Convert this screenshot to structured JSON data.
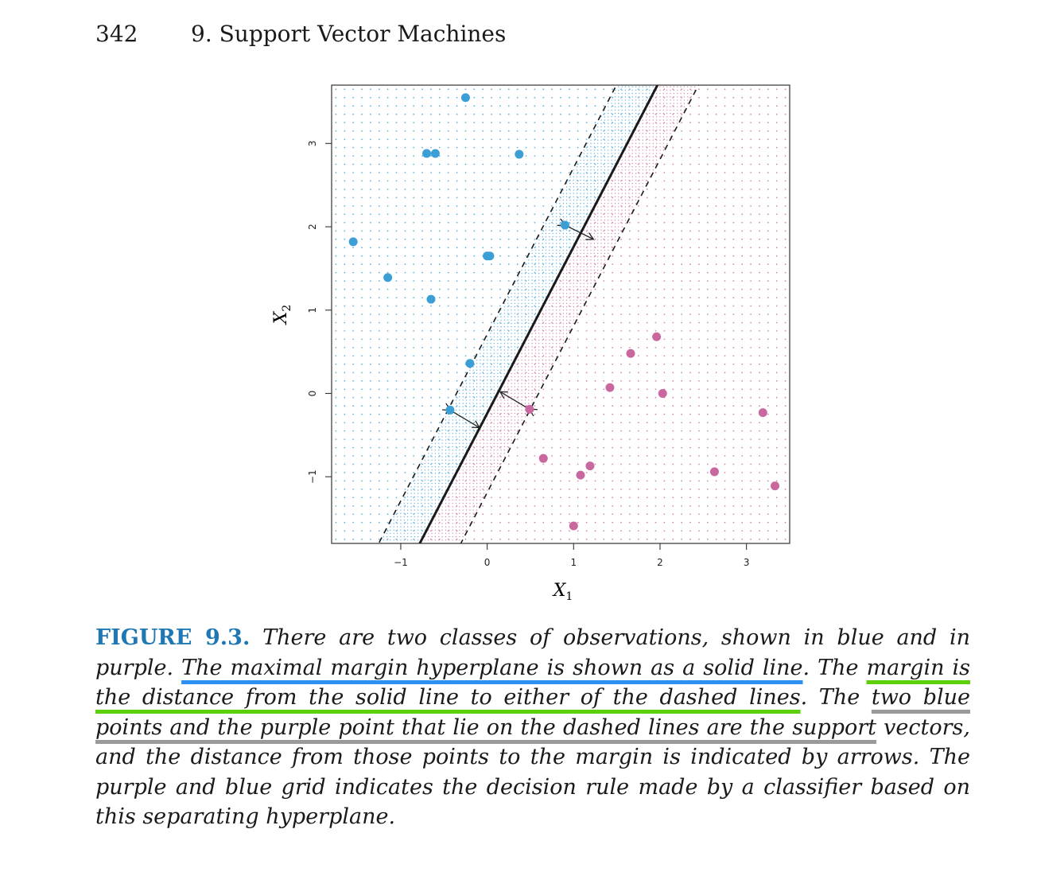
{
  "header": {
    "page_number": "342",
    "chapter_title": "9. Support Vector Machines"
  },
  "chart_data": {
    "type": "scatter",
    "xlabel": "X",
    "xlabel_sub": "1",
    "ylabel": "X",
    "ylabel_sub": "2",
    "xlim": [
      -1.8,
      3.5
    ],
    "ylim": [
      -1.8,
      3.7
    ],
    "xticks": [
      -1,
      0,
      1,
      2,
      3
    ],
    "yticks": [
      -1,
      0,
      1,
      2,
      3
    ],
    "grid": "background dot grid (blue/purple decision regions)",
    "hyperplane": {
      "slope": 2.0,
      "intercept": -0.24,
      "style": "solid"
    },
    "margins": [
      {
        "slope": 2.0,
        "intercept": 0.71,
        "style": "dashed"
      },
      {
        "slope": 2.0,
        "intercept": -1.19,
        "style": "dashed"
      }
    ],
    "colors": {
      "blue": "#3b9fd6",
      "purple": "#c8689e"
    },
    "series": [
      {
        "name": "blue",
        "x": [
          -0.25,
          -0.7,
          -0.6,
          0.37,
          0.9,
          -1.55,
          0.0,
          0.03,
          -1.15,
          -0.65,
          -0.2,
          -0.43
        ],
        "y": [
          3.55,
          2.88,
          2.88,
          2.87,
          2.02,
          1.82,
          1.65,
          1.65,
          1.39,
          1.13,
          0.36,
          -0.2
        ]
      },
      {
        "name": "purple",
        "x": [
          1.96,
          1.66,
          1.42,
          2.03,
          3.19,
          0.49,
          0.65,
          1.08,
          1.19,
          2.63,
          3.33,
          1.0
        ],
        "y": [
          0.68,
          0.48,
          0.07,
          0.0,
          -0.23,
          -0.19,
          -0.78,
          -0.98,
          -0.87,
          -0.94,
          -1.11,
          -1.59
        ]
      }
    ],
    "arrows": [
      {
        "from": [
          0.9,
          2.02
        ],
        "to": [
          1.23,
          1.85
        ]
      },
      {
        "from": [
          -0.43,
          -0.2
        ],
        "to": [
          -0.09,
          -0.41
        ]
      },
      {
        "from": [
          0.49,
          -0.19
        ],
        "to": [
          0.15,
          0.02
        ]
      }
    ]
  },
  "caption": {
    "figure_label": "FIGURE 9.3.",
    "part1": " There are two classes of observations, shown in blue and in purple. ",
    "underline_blue": "The maximal margin hyperplane is shown as a solid line",
    "part2": ". The ",
    "underline_green": "margin is the distance from the solid line to either of the dashed lines",
    "part3": ". The ",
    "underline_gray": "two blue points and the purple point that lie on the dashed lines are the support",
    "part4": " vectors, and the distance from those points to the margin is indicated by arrows. The purple and blue grid indicates the decision rule made by a classifier based on this separating hyperplane."
  }
}
